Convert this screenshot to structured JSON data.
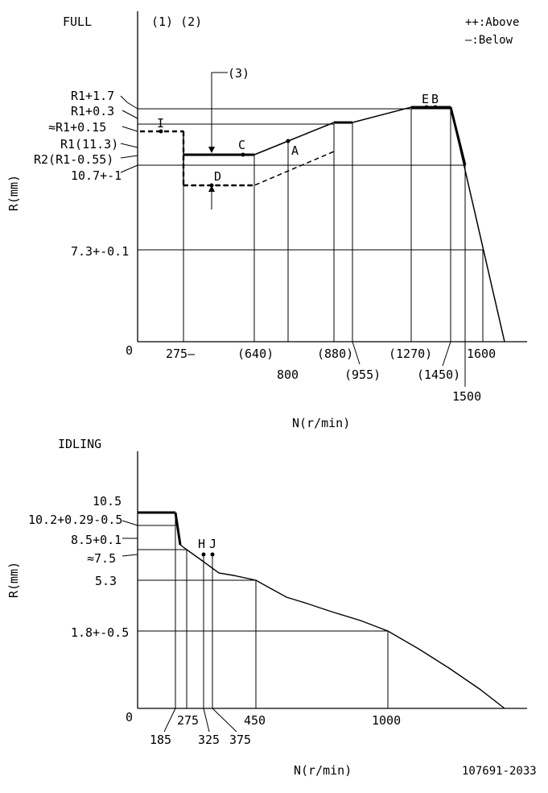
{
  "full": {
    "title": "FULL",
    "notes": "(1) (2)",
    "legend_above": "++:Above",
    "legend_below": "—:Below",
    "note3": "(3)",
    "y_label": "R(mm)",
    "x_label": "N(r/min)",
    "origin": "0",
    "y_ticks": [
      "R1+1.7",
      "R1+0.3",
      "≈R1+0.15",
      "R1(11.3)",
      "R2(R1-0.55)",
      "10.7+-1",
      "7.3+-0.1"
    ],
    "x_ticks": [
      "275—",
      "(640)",
      "800",
      "(880)",
      "(955)",
      "(1270)",
      "(1450)",
      "1500",
      "1600"
    ],
    "points": {
      "I": "I",
      "C": "C",
      "A": "A",
      "D": "D",
      "E": "E",
      "B": "B"
    }
  },
  "idling": {
    "title": "IDLING",
    "y_label": "R(mm)",
    "x_label": "N(r/min)",
    "origin": "0",
    "y_ticks": [
      "10.5",
      "10.2+0.29-0.5",
      "8.5+0.1",
      "≈7.5",
      "5.3",
      "1.8+-0.5"
    ],
    "x_ticks": [
      "185",
      "275",
      "325",
      "375",
      "450",
      "1000"
    ],
    "points": {
      "H": "H",
      "J": "J"
    }
  },
  "code": "107691-2033"
}
